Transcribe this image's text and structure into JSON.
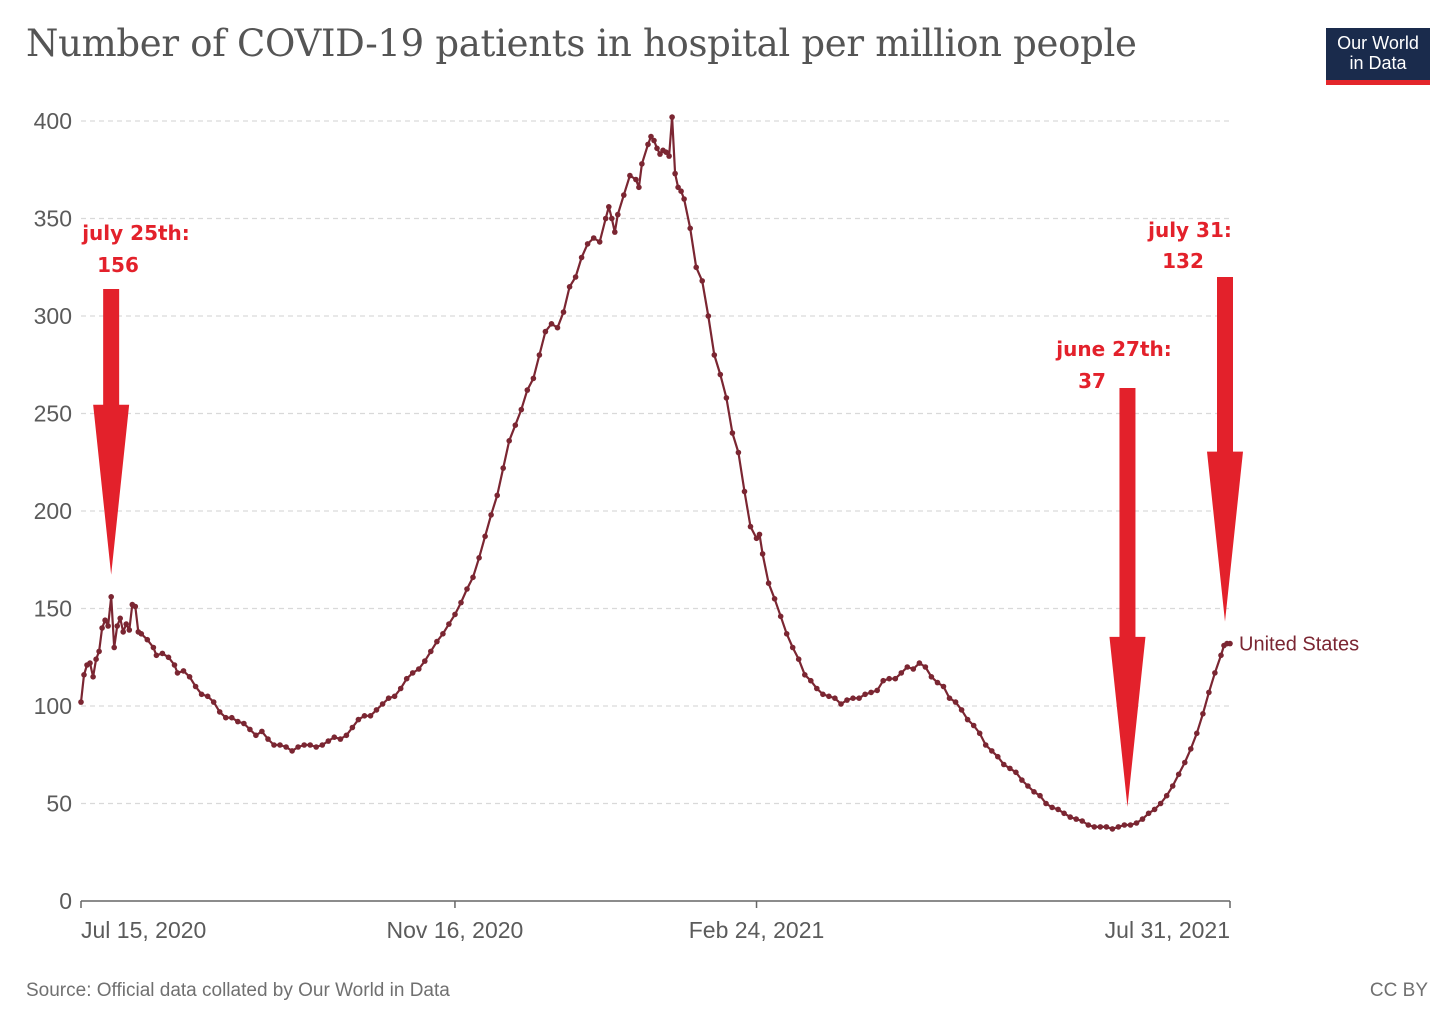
{
  "title": "Number of COVID-19 patients in hospital per million people",
  "logo": {
    "line1": "Our World",
    "line2": "in Data"
  },
  "source": "Source: Official data collated by Our World in Data",
  "license": "CC BY",
  "colors": {
    "series": "#7b2632",
    "annotation": "#e3212b",
    "grid": "#d9d9d9",
    "axis_text": "#5b5b5b",
    "logo_bg": "#1a2b4c",
    "logo_bar": "#e3262b"
  },
  "chart_data": {
    "type": "line",
    "title": "Number of COVID-19 patients in hospital per million people",
    "xlabel": "",
    "ylabel": "",
    "ylim": [
      0,
      400
    ],
    "yticks": [
      0,
      50,
      100,
      150,
      200,
      250,
      300,
      350,
      400
    ],
    "x_range_days": [
      0,
      381
    ],
    "xticks": [
      {
        "day": 0,
        "label": "Jul 15, 2020"
      },
      {
        "day": 124,
        "label": "Nov 16, 2020"
      },
      {
        "day": 224,
        "label": "Feb 24, 2021"
      },
      {
        "day": 381,
        "label": "Jul 31, 2021"
      }
    ],
    "grid": true,
    "series": [
      {
        "name": "United States",
        "markers": true,
        "points": [
          [
            0,
            102
          ],
          [
            1,
            116
          ],
          [
            2,
            121
          ],
          [
            3,
            122
          ],
          [
            4,
            115
          ],
          [
            5,
            124
          ],
          [
            6,
            128
          ],
          [
            7,
            140
          ],
          [
            8,
            144
          ],
          [
            9,
            141
          ],
          [
            10,
            156
          ],
          [
            11,
            130
          ],
          [
            12,
            141
          ],
          [
            13,
            145
          ],
          [
            14,
            138
          ],
          [
            15,
            142
          ],
          [
            16,
            139
          ],
          [
            17,
            152
          ],
          [
            18,
            151
          ],
          [
            19,
            138
          ],
          [
            20,
            137
          ],
          [
            22,
            134
          ],
          [
            24,
            130
          ],
          [
            25,
            126
          ],
          [
            27,
            127
          ],
          [
            29,
            125
          ],
          [
            31,
            121
          ],
          [
            32,
            117
          ],
          [
            34,
            118
          ],
          [
            36,
            115
          ],
          [
            38,
            110
          ],
          [
            40,
            106
          ],
          [
            42,
            105
          ],
          [
            44,
            102
          ],
          [
            46,
            97
          ],
          [
            48,
            94
          ],
          [
            50,
            94
          ],
          [
            52,
            92
          ],
          [
            54,
            91
          ],
          [
            56,
            88
          ],
          [
            58,
            85
          ],
          [
            60,
            87
          ],
          [
            62,
            83
          ],
          [
            64,
            80
          ],
          [
            66,
            80
          ],
          [
            68,
            79
          ],
          [
            70,
            77
          ],
          [
            72,
            79
          ],
          [
            74,
            80
          ],
          [
            76,
            80
          ],
          [
            78,
            79
          ],
          [
            80,
            80
          ],
          [
            82,
            82
          ],
          [
            84,
            84
          ],
          [
            86,
            83
          ],
          [
            88,
            85
          ],
          [
            90,
            89
          ],
          [
            92,
            93
          ],
          [
            94,
            95
          ],
          [
            96,
            95
          ],
          [
            98,
            98
          ],
          [
            100,
            101
          ],
          [
            102,
            104
          ],
          [
            104,
            105
          ],
          [
            106,
            109
          ],
          [
            108,
            114
          ],
          [
            110,
            117
          ],
          [
            112,
            119
          ],
          [
            114,
            123
          ],
          [
            116,
            128
          ],
          [
            118,
            133
          ],
          [
            120,
            137
          ],
          [
            122,
            142
          ],
          [
            124,
            147
          ],
          [
            126,
            153
          ],
          [
            128,
            160
          ],
          [
            130,
            166
          ],
          [
            132,
            176
          ],
          [
            134,
            187
          ],
          [
            136,
            198
          ],
          [
            138,
            208
          ],
          [
            140,
            222
          ],
          [
            142,
            236
          ],
          [
            144,
            244
          ],
          [
            146,
            252
          ],
          [
            148,
            262
          ],
          [
            150,
            268
          ],
          [
            152,
            280
          ],
          [
            154,
            292
          ],
          [
            156,
            296
          ],
          [
            158,
            294
          ],
          [
            160,
            302
          ],
          [
            162,
            315
          ],
          [
            164,
            320
          ],
          [
            166,
            330
          ],
          [
            168,
            337
          ],
          [
            170,
            340
          ],
          [
            172,
            338
          ],
          [
            174,
            350
          ],
          [
            175,
            356
          ],
          [
            176,
            350
          ],
          [
            177,
            343
          ],
          [
            178,
            352
          ],
          [
            180,
            362
          ],
          [
            182,
            372
          ],
          [
            184,
            370
          ],
          [
            185,
            366
          ],
          [
            186,
            378
          ],
          [
            188,
            388
          ],
          [
            189,
            392
          ],
          [
            190,
            390
          ],
          [
            191,
            386
          ],
          [
            192,
            383
          ],
          [
            193,
            385
          ],
          [
            194,
            384
          ],
          [
            195,
            382
          ],
          [
            196,
            402
          ],
          [
            197,
            373
          ],
          [
            198,
            366
          ],
          [
            199,
            364
          ],
          [
            200,
            360
          ],
          [
            202,
            345
          ],
          [
            204,
            325
          ],
          [
            206,
            318
          ],
          [
            208,
            300
          ],
          [
            210,
            280
          ],
          [
            212,
            270
          ],
          [
            214,
            258
          ],
          [
            216,
            240
          ],
          [
            218,
            230
          ],
          [
            220,
            210
          ],
          [
            222,
            192
          ],
          [
            224,
            186
          ],
          [
            225,
            188
          ],
          [
            226,
            178
          ],
          [
            228,
            163
          ],
          [
            230,
            155
          ],
          [
            232,
            146
          ],
          [
            234,
            137
          ],
          [
            236,
            130
          ],
          [
            238,
            124
          ],
          [
            240,
            116
          ],
          [
            242,
            113
          ],
          [
            244,
            109
          ],
          [
            246,
            106
          ],
          [
            248,
            105
          ],
          [
            250,
            104
          ],
          [
            252,
            101
          ],
          [
            254,
            103
          ],
          [
            256,
            104
          ],
          [
            258,
            104
          ],
          [
            260,
            106
          ],
          [
            262,
            107
          ],
          [
            264,
            108
          ],
          [
            266,
            113
          ],
          [
            268,
            114
          ],
          [
            270,
            114
          ],
          [
            272,
            117
          ],
          [
            274,
            120
          ],
          [
            276,
            119
          ],
          [
            278,
            122
          ],
          [
            280,
            120
          ],
          [
            282,
            115
          ],
          [
            284,
            112
          ],
          [
            286,
            110
          ],
          [
            288,
            104
          ],
          [
            290,
            102
          ],
          [
            292,
            98
          ],
          [
            294,
            93
          ],
          [
            296,
            90
          ],
          [
            298,
            86
          ],
          [
            300,
            80
          ],
          [
            302,
            77
          ],
          [
            304,
            74
          ],
          [
            306,
            70
          ],
          [
            308,
            68
          ],
          [
            310,
            66
          ],
          [
            312,
            62
          ],
          [
            314,
            59
          ],
          [
            316,
            56
          ],
          [
            318,
            54
          ],
          [
            320,
            50
          ],
          [
            322,
            48
          ],
          [
            324,
            47
          ],
          [
            326,
            45
          ],
          [
            328,
            43
          ],
          [
            330,
            42
          ],
          [
            332,
            41
          ],
          [
            334,
            39
          ],
          [
            336,
            38
          ],
          [
            338,
            38
          ],
          [
            340,
            38
          ],
          [
            342,
            37
          ],
          [
            344,
            38
          ],
          [
            346,
            39
          ],
          [
            348,
            39
          ],
          [
            350,
            40
          ],
          [
            352,
            42
          ],
          [
            354,
            45
          ],
          [
            356,
            47
          ],
          [
            358,
            50
          ],
          [
            360,
            54
          ],
          [
            362,
            59
          ],
          [
            364,
            65
          ],
          [
            366,
            71
          ],
          [
            368,
            78
          ],
          [
            370,
            86
          ],
          [
            372,
            96
          ],
          [
            374,
            107
          ],
          [
            376,
            117
          ],
          [
            378,
            126
          ],
          [
            379,
            131
          ],
          [
            380,
            132
          ],
          [
            381,
            132
          ]
        ]
      }
    ],
    "series_label": "United States",
    "annotations": [
      {
        "line1": "july 25th:",
        "line2": "156",
        "target_day": 10,
        "target_value": 156
      },
      {
        "line1": "june 27th:",
        "line2": "37",
        "target_day": 347,
        "target_value": 37
      },
      {
        "line1": "july 31:",
        "line2": "132",
        "target_day": 381,
        "target_value": 132
      }
    ]
  }
}
